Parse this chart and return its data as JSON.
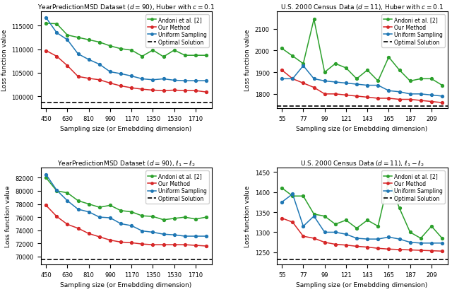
{
  "subplot1": {
    "title": "YearPredictionMSD Dataset ($d = 90$), Huber with $c = 0.1$",
    "xlabel": "Sampling size (or Emebdding dimension)",
    "ylabel": "Loss function value",
    "x": [
      450,
      540,
      630,
      720,
      810,
      900,
      990,
      1080,
      1170,
      1260,
      1350,
      1440,
      1530,
      1620,
      1710,
      1800
    ],
    "green": [
      115500,
      115400,
      113000,
      112500,
      112000,
      111500,
      110700,
      110100,
      109800,
      108500,
      109800,
      108400,
      109800,
      108700,
      108700,
      108700
    ],
    "red": [
      109700,
      108500,
      106500,
      104200,
      103800,
      103500,
      102800,
      102200,
      101800,
      101500,
      101300,
      101200,
      101300,
      101200,
      101200,
      100900
    ],
    "blue": [
      116700,
      113500,
      112000,
      109000,
      107800,
      106800,
      105200,
      104800,
      104300,
      103700,
      103500,
      103700,
      103400,
      103300,
      103300,
      103300
    ],
    "optimal": 98700,
    "ylim": [
      97500,
      118000
    ],
    "xticks": [
      450,
      630,
      810,
      990,
      1170,
      1350,
      1530,
      1710
    ]
  },
  "subplot2": {
    "title": "U.S. 2000 Census Data ($d = 11$), Huber with $c = 0.1$",
    "xlabel": "Sampling size (or Emebdding dimension)",
    "ylabel": "Loss function value",
    "x": [
      55,
      66,
      77,
      88,
      99,
      110,
      121,
      132,
      143,
      154,
      165,
      176,
      187,
      198,
      209,
      220
    ],
    "green": [
      2010,
      1975,
      1940,
      2145,
      1900,
      1940,
      1920,
      1870,
      1910,
      1860,
      1970,
      1910,
      1860,
      1870,
      1870,
      1840
    ],
    "red": [
      1910,
      1870,
      1850,
      1830,
      1800,
      1800,
      1795,
      1790,
      1785,
      1780,
      1780,
      1775,
      1775,
      1770,
      1765,
      1760
    ],
    "blue": [
      1870,
      1870,
      1930,
      1870,
      1860,
      1855,
      1850,
      1845,
      1840,
      1840,
      1815,
      1810,
      1800,
      1800,
      1795,
      1790
    ],
    "optimal": 1745,
    "ylim": [
      1735,
      2180
    ],
    "xticks": [
      55,
      77,
      99,
      121,
      143,
      165,
      187,
      209
    ]
  },
  "subplot3": {
    "title": "YearPredictionMSD Dataset ($d = 90$), $\\ell_1 - \\ell_2$",
    "xlabel": "Sampling size (or Emebdding dimension)",
    "ylabel": "Loss function value",
    "x": [
      450,
      540,
      630,
      720,
      810,
      900,
      990,
      1080,
      1170,
      1260,
      1350,
      1440,
      1530,
      1620,
      1710,
      1800
    ],
    "green": [
      82000,
      80000,
      79700,
      78500,
      78000,
      77500,
      77800,
      77000,
      76800,
      76200,
      76100,
      75600,
      75800,
      76000,
      75700,
      76000
    ],
    "red": [
      77800,
      76100,
      74900,
      74300,
      73500,
      73000,
      72500,
      72200,
      72100,
      71900,
      71800,
      71800,
      71800,
      71800,
      71700,
      71600
    ],
    "blue": [
      82500,
      80100,
      78500,
      77200,
      76800,
      76000,
      75900,
      75000,
      74700,
      73900,
      73700,
      73400,
      73300,
      73100,
      73100,
      73100
    ],
    "optimal": 69600,
    "ylim": [
      68800,
      83500
    ],
    "xticks": [
      450,
      630,
      810,
      990,
      1170,
      1350,
      1530,
      1710
    ]
  },
  "subplot4": {
    "title": "U.S. 2000 Census Data ($d = 11$), $\\ell_1 - \\ell_2$",
    "xlabel": "Sampling size (or Emebdding dimension)",
    "ylabel": "Loss function value",
    "x": [
      55,
      66,
      77,
      88,
      99,
      110,
      121,
      132,
      143,
      154,
      165,
      176,
      187,
      198,
      209,
      220
    ],
    "green": [
      1410,
      1390,
      1390,
      1345,
      1340,
      1320,
      1330,
      1310,
      1330,
      1315,
      1430,
      1360,
      1300,
      1285,
      1315,
      1285
    ],
    "red": [
      1335,
      1325,
      1290,
      1285,
      1275,
      1270,
      1268,
      1265,
      1263,
      1260,
      1258,
      1257,
      1256,
      1255,
      1254,
      1253
    ],
    "blue": [
      1375,
      1395,
      1315,
      1340,
      1300,
      1300,
      1295,
      1285,
      1283,
      1283,
      1288,
      1283,
      1275,
      1273,
      1273,
      1273
    ],
    "optimal": 1232,
    "ylim": [
      1220,
      1460
    ],
    "xticks": [
      55,
      77,
      99,
      121,
      143,
      165,
      187,
      209
    ]
  },
  "colors": {
    "green": "#2ca02c",
    "red": "#d62728",
    "blue": "#1f77b4",
    "optimal": "black"
  },
  "legend_labels": [
    "Andoni et al. [2]",
    "Our Method",
    "Uniform Sampling",
    "Optimal Solution"
  ]
}
